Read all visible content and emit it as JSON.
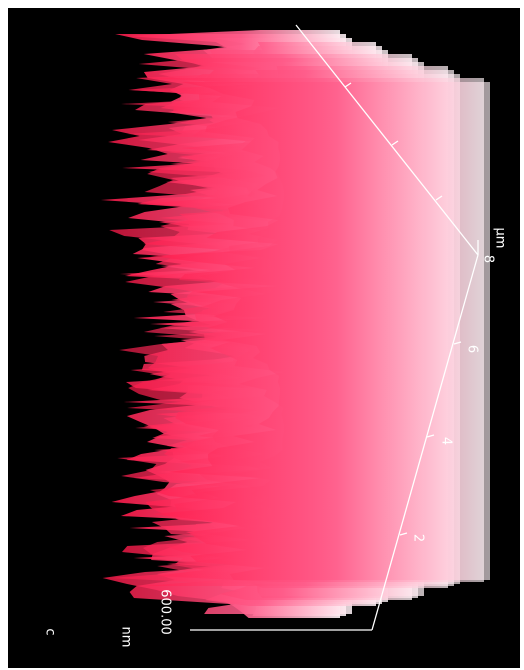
{
  "panel_label": "c",
  "z_axis": {
    "value_label": "600.00",
    "unit": "nm"
  },
  "x_axis": {
    "tick_labels": [
      "2",
      "4",
      "6",
      "8"
    ],
    "unit": "µm"
  }
}
